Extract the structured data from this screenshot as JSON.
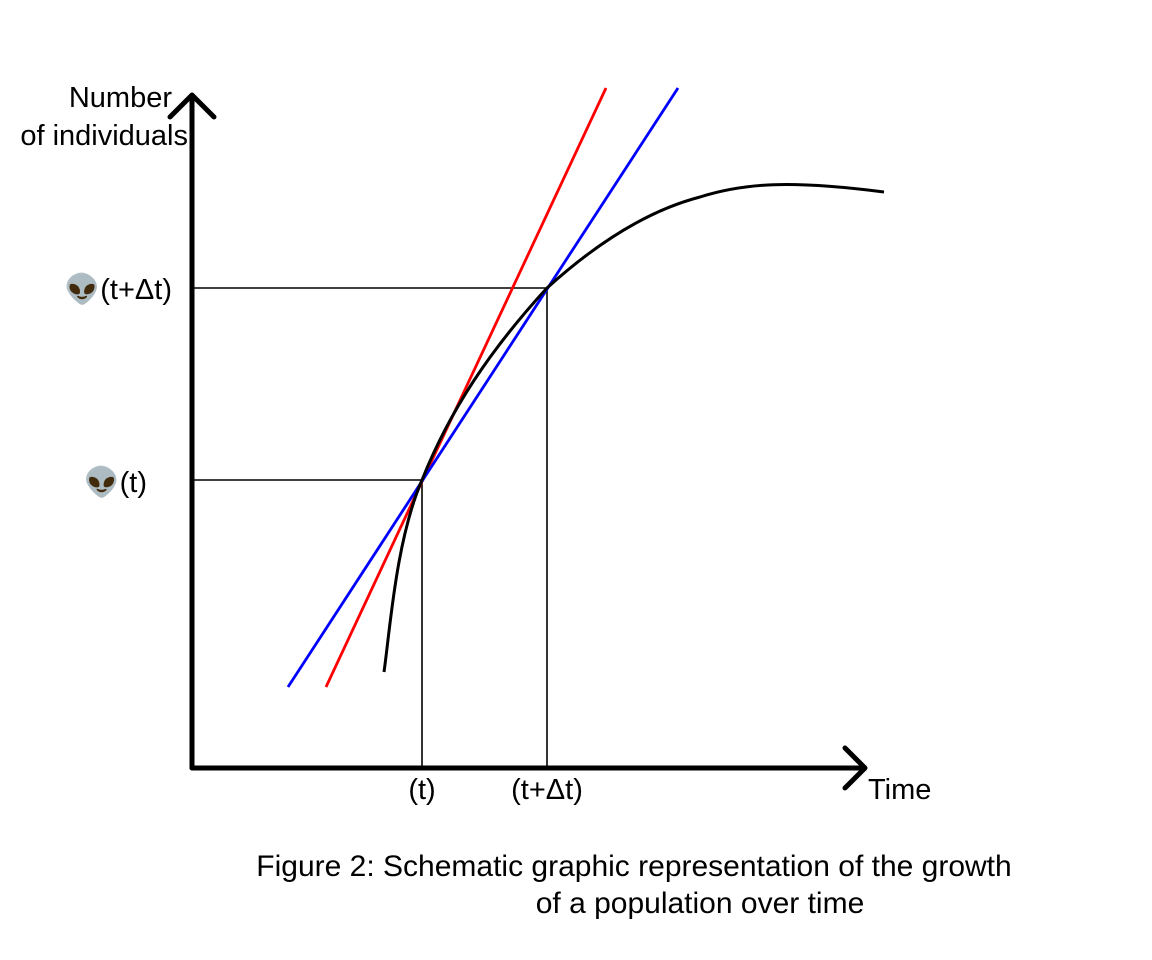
{
  "axes": {
    "y_label_line1": "Number",
    "y_label_line2": "of individuals",
    "x_label": "Time"
  },
  "ticks": {
    "y_upper": "👽(t+Δt)",
    "y_lower": "👽(t)",
    "x_left": "(t)",
    "x_right": "(t+Δt)"
  },
  "caption": {
    "line1": "Figure 2: Schematic graphic representation of the growth",
    "line2": "of a population over time"
  },
  "colors": {
    "curve": "#000000",
    "tangent": "#ff0000",
    "secant": "#0000ff",
    "axes": "#000000"
  }
}
